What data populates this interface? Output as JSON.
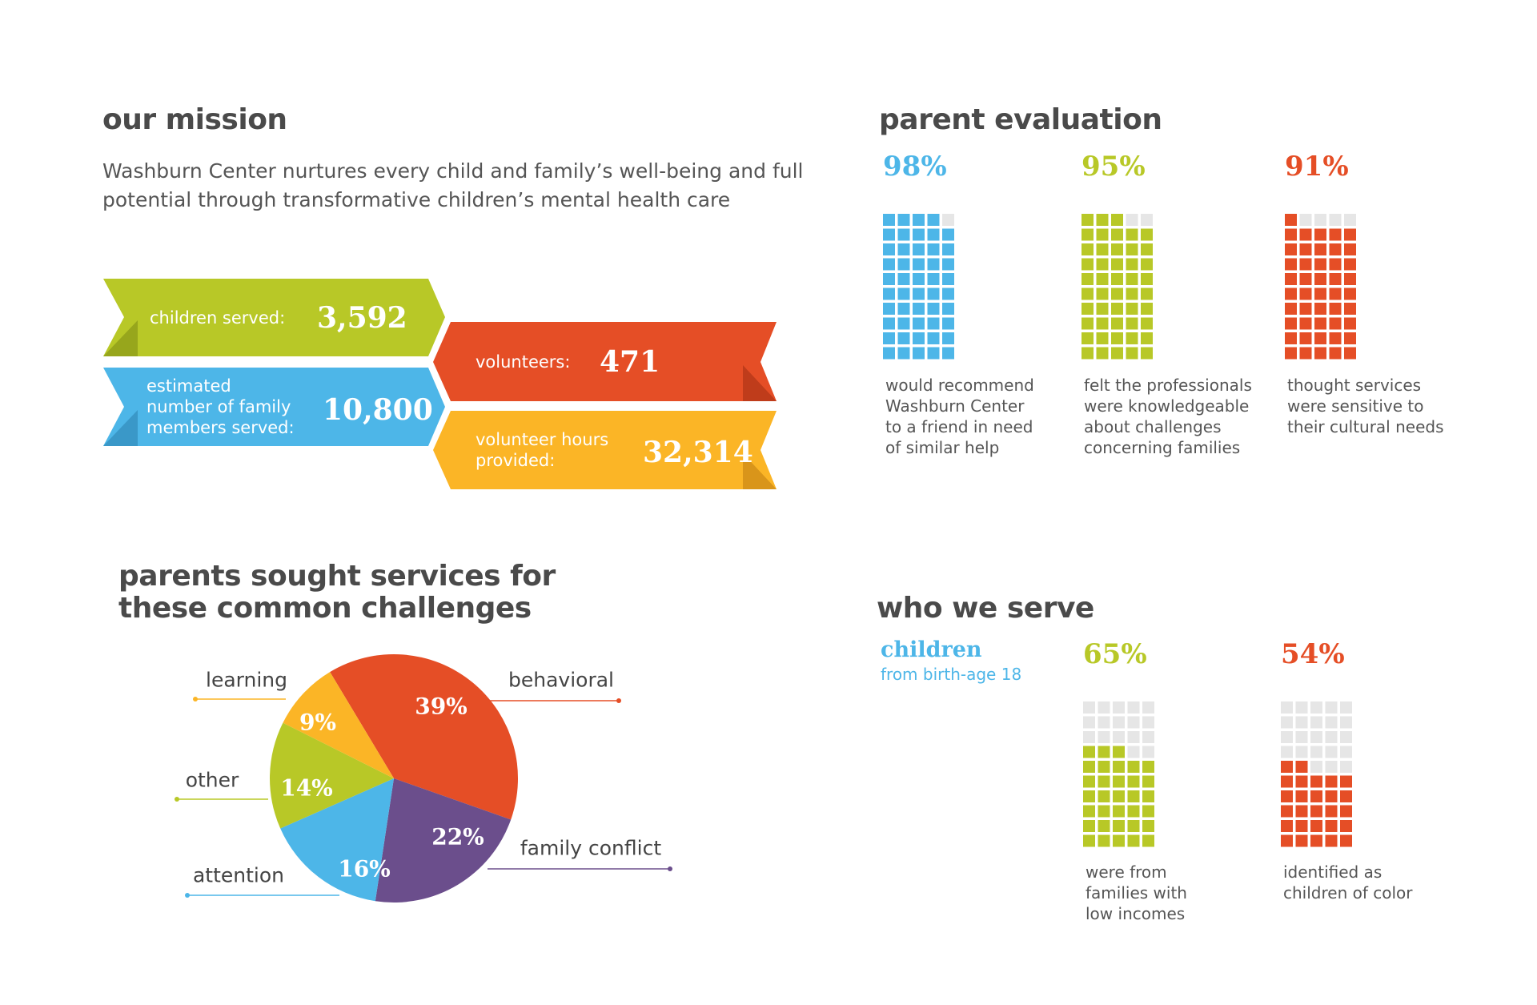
{
  "mission": {
    "title": "our mission",
    "text": "Washburn Center nurtures every child and family’s well-being and full potential through transformative children’s mental health care"
  },
  "stats": [
    {
      "label": "children served:",
      "value": "3,592"
    },
    {
      "label": "estimated\nnumber of family\nmembers served:",
      "value": "10,800"
    },
    {
      "label": "volunteers:",
      "value": "471"
    },
    {
      "label": "volunteer hours\nprovided:",
      "value": "32,314"
    }
  ],
  "chart_data": [
    {
      "type": "pie",
      "title": "parents sought services for\nthese common challenges",
      "categories": [
        "behavioral",
        "family conflict",
        "attention",
        "other",
        "learning"
      ],
      "values": [
        39,
        22,
        16,
        14,
        9
      ],
      "value_labels": [
        "39%",
        "22%",
        "16%",
        "14%",
        "9%"
      ],
      "colors": [
        "#e54e26",
        "#6b4e8c",
        "#4db6e8",
        "#b8c827",
        "#fbb526"
      ]
    },
    {
      "type": "waffle",
      "title": "parent evaluation",
      "categories": [
        "would recommend\nWashburn Center\nto a friend in need\nof similar help",
        "felt the professionals\nwere knowledgeable\nabout challenges\nconcerning families",
        "thought services\nwere sensitive to\ntheir cultural needs"
      ],
      "values": [
        98,
        95,
        91
      ],
      "value_labels": [
        "98%",
        "95%",
        "91%"
      ],
      "colors": [
        "#4db6e8",
        "#b8c827",
        "#e54e26"
      ]
    },
    {
      "type": "waffle",
      "title": "who we serve",
      "subtitle": "children",
      "note": "from birth-age 18",
      "categories": [
        "were from\nfamilies with\nlow incomes",
        "identified as\nchildren of color"
      ],
      "values": [
        65,
        54
      ],
      "value_labels": [
        "65%",
        "54%"
      ],
      "colors": [
        "#b8c827",
        "#e54e26"
      ]
    }
  ]
}
